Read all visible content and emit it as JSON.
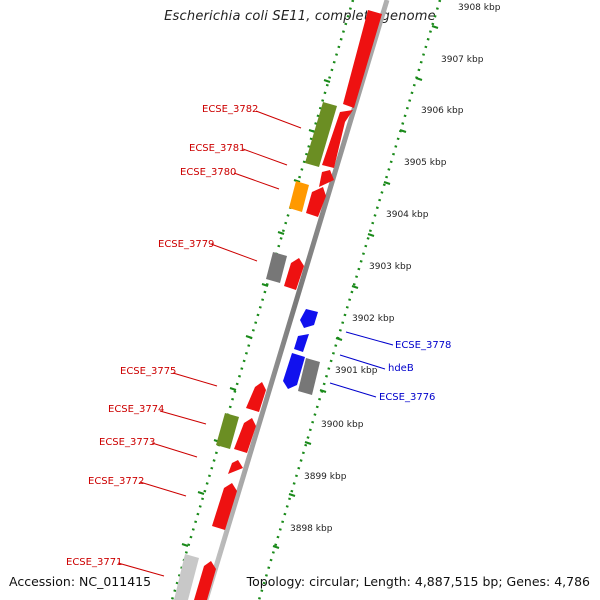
{
  "title": "Escherichia coli SE11, complete genome",
  "accession": "Accession: NC_011415",
  "summary": "Topology: circular; Length: 4,887,515 bp; Genes: 4,786",
  "ticks": [
    {
      "label": "3908 kbp"
    },
    {
      "label": "3907 kbp"
    },
    {
      "label": "3906 kbp"
    },
    {
      "label": "3905 kbp"
    },
    {
      "label": "3904 kbp"
    },
    {
      "label": "3903 kbp"
    },
    {
      "label": "3902 kbp"
    },
    {
      "label": "3901 kbp"
    },
    {
      "label": "3900 kbp"
    },
    {
      "label": "3899 kbp"
    },
    {
      "label": "3898 kbp"
    }
  ],
  "gene_labels": [
    {
      "name": "ECSE_3782",
      "color": "#cc0000"
    },
    {
      "name": "ECSE_3781",
      "color": "#cc0000"
    },
    {
      "name": "ECSE_3780",
      "color": "#cc0000"
    },
    {
      "name": "ECSE_3779",
      "color": "#cc0000"
    },
    {
      "name": "ECSE_3778",
      "color": "#0000cc"
    },
    {
      "name": "hdeB",
      "color": "#0000cc"
    },
    {
      "name": "ECSE_3776",
      "color": "#0000cc"
    },
    {
      "name": "ECSE_3775",
      "color": "#cc0000"
    },
    {
      "name": "ECSE_3774",
      "color": "#cc0000"
    },
    {
      "name": "ECSE_3773",
      "color": "#cc0000"
    },
    {
      "name": "ECSE_3772",
      "color": "#cc0000"
    },
    {
      "name": "ECSE_3771",
      "color": "#cc0000"
    }
  ],
  "colors": {
    "cds": "#ee1111",
    "trna": "#6b8e23",
    "rrna": "#ff9900",
    "pseudo": "#777777",
    "rev": "#1111ee",
    "light": "#c8c8c8",
    "ring": "#1a8a1a",
    "backbone": "#888888"
  }
}
